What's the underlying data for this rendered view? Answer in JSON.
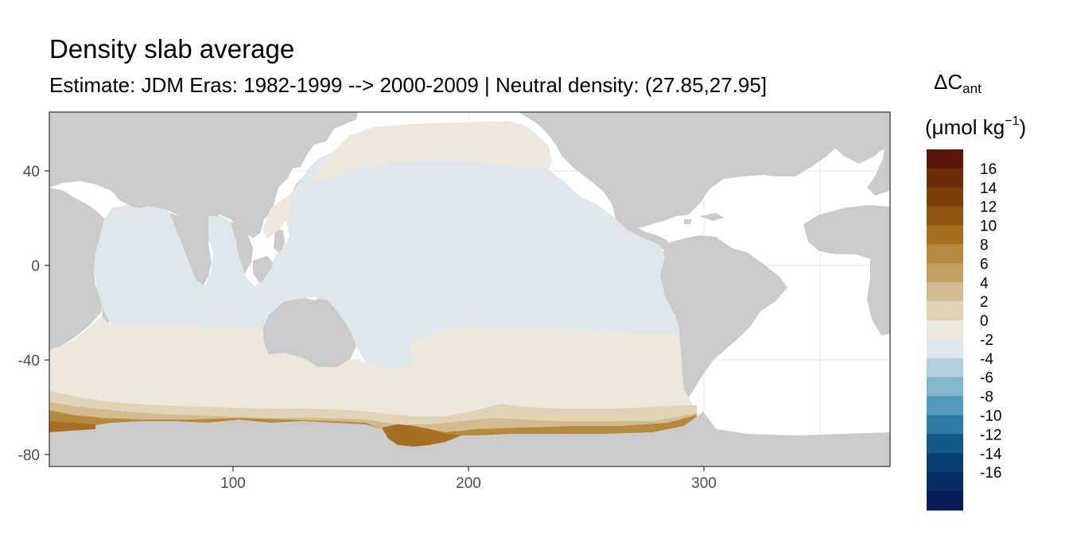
{
  "title": "Density slab average",
  "subtitle": "Estimate: JDM Eras: 1982-1999 --> 2000-2009 | Neutral density: (27.85,27.95]",
  "legend": {
    "title_main": "ΔC",
    "title_sub": "ant",
    "unit_prefix": "(μmol kg",
    "unit_exp": "−1",
    "unit_suffix": ")",
    "bins": [
      {
        "label": "",
        "color": "#5c1505"
      },
      {
        "label": "16",
        "color": "#6e2a07"
      },
      {
        "label": "14",
        "color": "#7f3e08"
      },
      {
        "label": "12",
        "color": "#8f5510"
      },
      {
        "label": "10",
        "color": "#a66f21"
      },
      {
        "label": "8",
        "color": "#b58a3e"
      },
      {
        "label": "6",
        "color": "#c39f62"
      },
      {
        "label": "4",
        "color": "#d3bb8f"
      },
      {
        "label": "2",
        "color": "#e1d3b8"
      },
      {
        "label": "0",
        "color": "#ede7dc"
      },
      {
        "label": "-2",
        "color": "#dde7ec"
      },
      {
        "label": "-4",
        "color": "#b3cfe0"
      },
      {
        "label": "-6",
        "color": "#84b5cf"
      },
      {
        "label": "-8",
        "color": "#5598bc"
      },
      {
        "label": "-10",
        "color": "#2d7aa7"
      },
      {
        "label": "-12",
        "color": "#11598c"
      },
      {
        "label": "-14",
        "color": "#073f74"
      },
      {
        "label": "-16",
        "color": "#062b62"
      },
      {
        "label": "",
        "color": "#081a57"
      }
    ]
  },
  "axes": {
    "x_ticks": [
      "100",
      "200",
      "300"
    ],
    "y_ticks": [
      "40",
      "0",
      "-40",
      "-80"
    ]
  },
  "colors": {
    "land": "#cbcbcb",
    "no_data": "#ffffff",
    "grid": "#ebebeb",
    "panel_border": "#333333"
  }
}
